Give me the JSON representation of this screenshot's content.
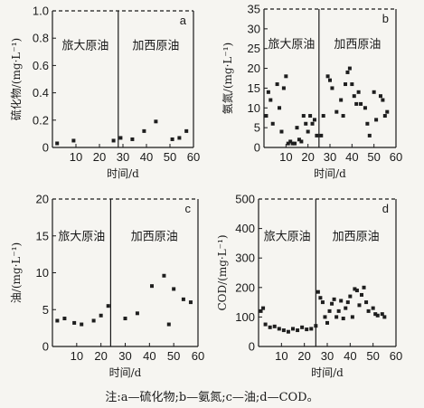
{
  "caption": "注:a—硫化物;b—氨氮;c—油;d—COD。",
  "colors": {
    "marker": "#1e1e1e",
    "axis": "#1a1a1a"
  },
  "chart_data": [
    {
      "type": "scatter",
      "panel": "a",
      "ylabel": "硫化物/(mg·L⁻¹)",
      "xlabel": "时间/d",
      "xlim": [
        0,
        60
      ],
      "ylim": [
        0,
        1.0
      ],
      "xticks": [
        10,
        20,
        30,
        40,
        50,
        60
      ],
      "yticks": [
        0,
        0.2,
        0.4,
        0.6,
        0.8,
        1.0
      ],
      "ytick_labels": [
        "0",
        "0.2",
        "0.4",
        "0.6",
        "0.8",
        "1.0"
      ],
      "divider_x": 28,
      "region_labels": [
        "旅大原油",
        "加西原油"
      ],
      "points": [
        [
          2,
          0.03
        ],
        [
          9,
          0.05
        ],
        [
          26,
          0.05
        ],
        [
          29,
          0.07
        ],
        [
          34,
          0.06
        ],
        [
          39,
          0.12
        ],
        [
          44,
          0.19
        ],
        [
          51,
          0.06
        ],
        [
          54,
          0.07
        ],
        [
          57,
          0.12
        ]
      ]
    },
    {
      "type": "scatter",
      "panel": "b",
      "ylabel": "氨氮/(mg·L⁻¹)",
      "xlabel": "时间/d",
      "xlim": [
        0,
        60
      ],
      "ylim": [
        0,
        35
      ],
      "xticks": [
        10,
        20,
        30,
        40,
        50,
        60
      ],
      "yticks": [
        0,
        5,
        10,
        15,
        20,
        25,
        30,
        35
      ],
      "divider_x": 25,
      "region_labels": [
        "旅大原油",
        "加西原油"
      ],
      "points": [
        [
          1,
          8
        ],
        [
          2,
          14
        ],
        [
          3,
          12
        ],
        [
          4,
          6
        ],
        [
          6,
          16
        ],
        [
          7,
          10
        ],
        [
          8,
          4
        ],
        [
          9,
          15
        ],
        [
          10,
          18
        ],
        [
          11,
          1
        ],
        [
          12,
          1.5
        ],
        [
          13,
          1
        ],
        [
          14,
          1
        ],
        [
          15,
          5
        ],
        [
          16,
          2
        ],
        [
          17,
          1.5
        ],
        [
          18,
          8
        ],
        [
          19,
          6
        ],
        [
          20,
          4
        ],
        [
          21,
          8
        ],
        [
          22,
          6
        ],
        [
          23,
          7
        ],
        [
          24,
          3
        ],
        [
          26,
          3
        ],
        [
          27,
          8
        ],
        [
          29,
          18
        ],
        [
          30,
          17
        ],
        [
          31,
          15
        ],
        [
          33,
          9
        ],
        [
          35,
          12
        ],
        [
          36,
          8
        ],
        [
          37,
          16
        ],
        [
          38,
          19
        ],
        [
          39,
          20
        ],
        [
          40,
          16
        ],
        [
          41,
          13
        ],
        [
          42,
          11
        ],
        [
          43,
          14
        ],
        [
          44,
          11
        ],
        [
          46,
          10
        ],
        [
          47,
          6
        ],
        [
          48,
          3
        ],
        [
          50,
          14
        ],
        [
          51,
          7
        ],
        [
          53,
          13
        ],
        [
          54,
          12
        ],
        [
          55,
          8
        ],
        [
          56,
          9
        ]
      ]
    },
    {
      "type": "scatter",
      "panel": "c",
      "ylabel": "油/(mg·L⁻¹)",
      "xlabel": "时间/d",
      "xlim": [
        0,
        60
      ],
      "ylim": [
        0,
        20
      ],
      "xticks": [
        10,
        20,
        30,
        40,
        50,
        60
      ],
      "yticks": [
        0,
        5,
        10,
        15,
        20
      ],
      "divider_x": 24,
      "region_labels": [
        "旅大原油",
        "加西原油"
      ],
      "points": [
        [
          2,
          3.5
        ],
        [
          5,
          3.8
        ],
        [
          9,
          3.2
        ],
        [
          12,
          3.0
        ],
        [
          17,
          3.5
        ],
        [
          20,
          4.2
        ],
        [
          23,
          5.5
        ],
        [
          30,
          3.8
        ],
        [
          35,
          4.5
        ],
        [
          41,
          8.2
        ],
        [
          46,
          9.6
        ],
        [
          48,
          3.0
        ],
        [
          50,
          7.8
        ],
        [
          54,
          6.4
        ],
        [
          57,
          6.0
        ]
      ]
    },
    {
      "type": "scatter",
      "panel": "d",
      "ylabel": "COD/(mg·L⁻¹)",
      "xlabel": "时间/d",
      "xlim": [
        0,
        60
      ],
      "ylim": [
        0,
        500
      ],
      "xticks": [
        10,
        20,
        30,
        40,
        50,
        60
      ],
      "yticks": [
        0,
        100,
        200,
        300,
        400,
        500
      ],
      "divider_x": 25,
      "region_labels": [
        "旅大原油",
        "加西原油"
      ],
      "points": [
        [
          1,
          120
        ],
        [
          2,
          130
        ],
        [
          3,
          75
        ],
        [
          5,
          65
        ],
        [
          7,
          68
        ],
        [
          9,
          60
        ],
        [
          11,
          55
        ],
        [
          13,
          50
        ],
        [
          15,
          60
        ],
        [
          17,
          55
        ],
        [
          19,
          65
        ],
        [
          21,
          58
        ],
        [
          23,
          60
        ],
        [
          25,
          70
        ],
        [
          26,
          185
        ],
        [
          27,
          165
        ],
        [
          28,
          150
        ],
        [
          29,
          100
        ],
        [
          30,
          80
        ],
        [
          31,
          120
        ],
        [
          32,
          145
        ],
        [
          33,
          160
        ],
        [
          34,
          100
        ],
        [
          35,
          120
        ],
        [
          36,
          155
        ],
        [
          37,
          95
        ],
        [
          38,
          130
        ],
        [
          39,
          150
        ],
        [
          40,
          170
        ],
        [
          41,
          100
        ],
        [
          42,
          195
        ],
        [
          43,
          190
        ],
        [
          44,
          140
        ],
        [
          45,
          175
        ],
        [
          46,
          200
        ],
        [
          47,
          150
        ],
        [
          48,
          120
        ],
        [
          50,
          130
        ],
        [
          51,
          110
        ],
        [
          52,
          105
        ],
        [
          54,
          110
        ],
        [
          55,
          100
        ]
      ]
    }
  ]
}
